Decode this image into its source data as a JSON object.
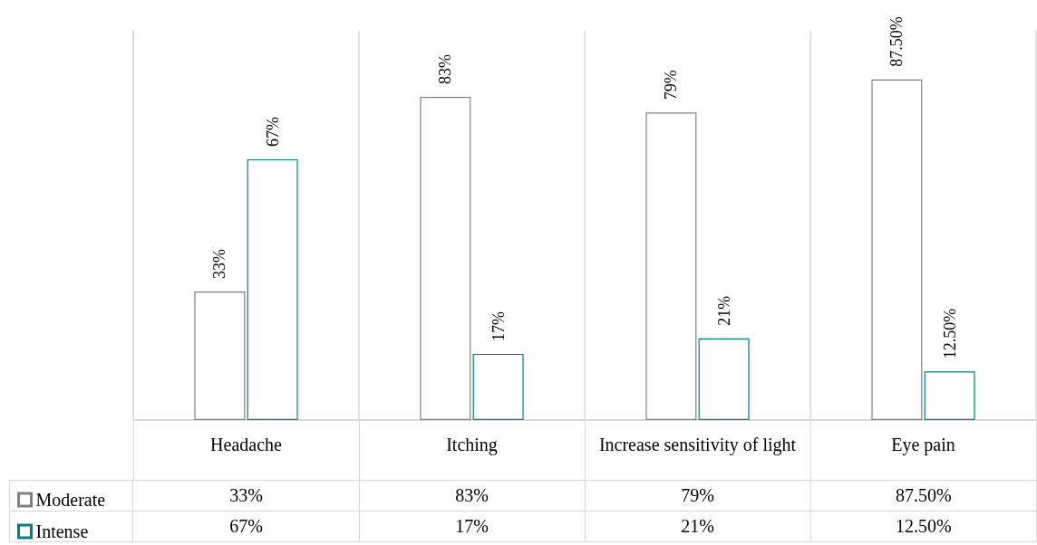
{
  "chart_data": {
    "type": "bar",
    "categories": [
      "Headache",
      "Itching",
      "Increase sensitivity of light",
      "Eye pain"
    ],
    "series": [
      {
        "name": "Moderate",
        "color": "#808080",
        "values": [
          33,
          83,
          79,
          87.5
        ],
        "value_labels": [
          "33%",
          "83%",
          "79%",
          "87.50%"
        ]
      },
      {
        "name": "Intense",
        "color": "#008080",
        "values": [
          67,
          17,
          21,
          12.5
        ],
        "value_labels": [
          "67%",
          "17%",
          "21%",
          "12.50%"
        ]
      }
    ],
    "ylim": [
      0,
      100
    ],
    "tick_labels": "x",
    "grid": "x",
    "legend": "bottom left"
  }
}
